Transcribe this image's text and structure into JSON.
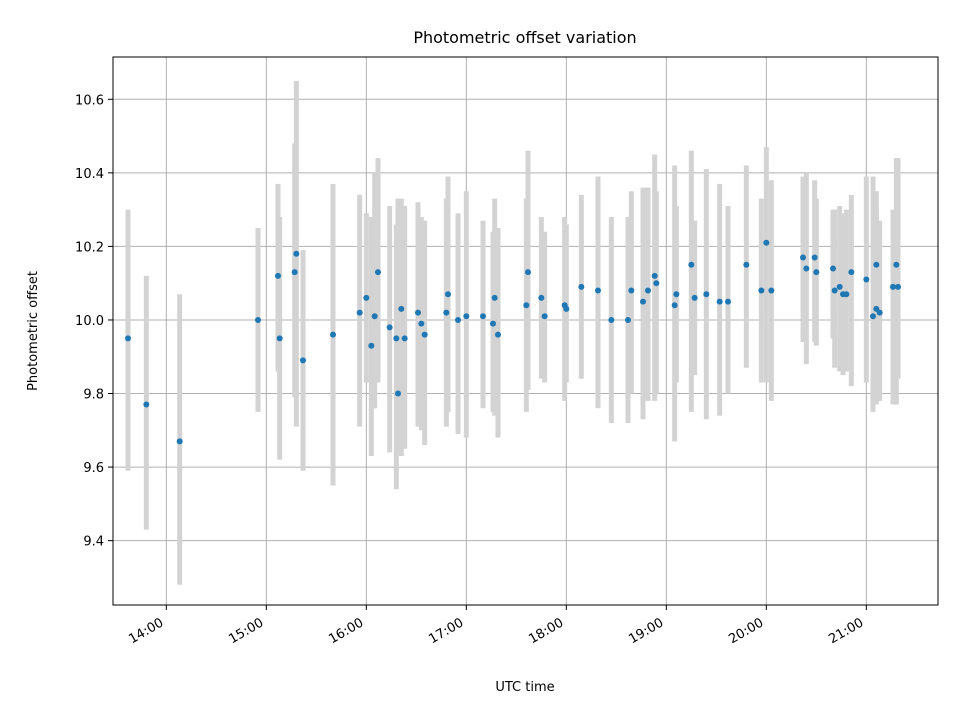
{
  "chart_data": {
    "type": "scatter",
    "title": "Photometric offset variation",
    "xlabel": "UTC time",
    "ylabel": "Photometric offset",
    "grid": true,
    "xlim": [
      "13:28",
      "21:43"
    ],
    "ylim": [
      9.225,
      10.715
    ],
    "x_ticks": [
      "14:00",
      "15:00",
      "16:00",
      "17:00",
      "18:00",
      "19:00",
      "20:00",
      "21:00"
    ],
    "y_ticks": [
      "9.4",
      "9.6",
      "9.8",
      "10.0",
      "10.2",
      "10.4",
      "10.6"
    ],
    "colors": {
      "point": "#1f77b4",
      "errorbar": "#d3d3d3",
      "grid": "#b0b0b0"
    },
    "series": [
      {
        "x": [
          "13:37",
          "13:48",
          "14:08",
          "14:55",
          "15:07",
          "15:08",
          "15:17",
          "15:18",
          "15:22",
          "15:40",
          "15:56",
          "16:00",
          "16:03",
          "16:05",
          "16:07",
          "16:14",
          "16:18",
          "16:19",
          "16:21",
          "16:23",
          "16:31",
          "16:33",
          "16:35",
          "16:48",
          "16:49",
          "16:55",
          "17:00",
          "17:10",
          "17:16",
          "17:17",
          "17:19",
          "17:36",
          "17:37",
          "17:45",
          "17:47",
          "17:59",
          "18:00",
          "18:09",
          "18:19",
          "18:27",
          "18:37",
          "18:39",
          "18:46",
          "18:49",
          "18:53",
          "18:54",
          "19:05",
          "19:06",
          "19:15",
          "19:17",
          "19:24",
          "19:32",
          "19:37",
          "19:48",
          "19:57",
          "20:00",
          "20:03",
          "20:22",
          "20:24",
          "20:29",
          "20:30",
          "20:40",
          "20:41",
          "20:44",
          "20:46",
          "20:48",
          "20:51",
          "21:00",
          "21:04",
          "21:06",
          "21:06",
          "21:08",
          "21:16",
          "21:18",
          "21:19"
        ],
        "y": [
          9.95,
          9.77,
          9.67,
          10.0,
          10.12,
          9.95,
          10.13,
          10.18,
          9.89,
          9.96,
          10.02,
          10.06,
          9.93,
          10.01,
          10.13,
          9.98,
          9.95,
          9.8,
          10.03,
          9.95,
          10.02,
          9.99,
          9.96,
          10.02,
          10.07,
          10.0,
          10.01,
          10.01,
          9.99,
          10.06,
          9.96,
          10.04,
          10.13,
          10.06,
          10.01,
          10.04,
          10.03,
          10.09,
          10.08,
          10.0,
          10.0,
          10.08,
          10.05,
          10.08,
          10.12,
          10.1,
          10.04,
          10.07,
          10.15,
          10.06,
          10.07,
          10.05,
          10.05,
          10.15,
          10.08,
          10.21,
          10.08,
          10.17,
          10.14,
          10.17,
          10.13,
          10.14,
          10.08,
          10.09,
          10.07,
          10.07,
          10.13,
          10.11,
          10.01,
          10.03,
          10.15,
          10.02,
          10.09,
          10.15,
          10.09
        ],
        "yerr_low": [
          9.59,
          9.43,
          9.28,
          9.75,
          9.86,
          9.62,
          9.79,
          9.71,
          9.59,
          9.55,
          9.71,
          9.83,
          9.63,
          9.76,
          9.83,
          9.64,
          9.54,
          9.64,
          9.63,
          9.65,
          9.71,
          9.7,
          9.66,
          9.71,
          9.75,
          9.69,
          9.68,
          9.76,
          9.75,
          9.74,
          9.68,
          9.75,
          9.81,
          9.84,
          9.83,
          9.78,
          9.83,
          9.84,
          9.76,
          9.72,
          9.72,
          9.8,
          9.73,
          9.78,
          9.78,
          9.8,
          9.67,
          9.83,
          9.75,
          9.85,
          9.73,
          9.74,
          9.8,
          9.87,
          9.83,
          9.83,
          9.78,
          9.94,
          9.88,
          9.94,
          9.93,
          9.95,
          9.87,
          9.86,
          9.85,
          9.86,
          9.82,
          9.83,
          9.75,
          9.77,
          9.79,
          9.78,
          9.77,
          9.77,
          9.84
        ],
        "yerr_high": [
          10.3,
          10.12,
          10.07,
          10.25,
          10.37,
          10.28,
          10.48,
          10.65,
          10.19,
          10.37,
          10.34,
          10.29,
          10.28,
          10.4,
          10.44,
          10.31,
          10.26,
          10.33,
          10.33,
          10.31,
          10.32,
          10.28,
          10.27,
          10.33,
          10.39,
          10.29,
          10.35,
          10.27,
          10.24,
          10.33,
          10.25,
          10.33,
          10.46,
          10.28,
          10.24,
          10.28,
          10.26,
          10.34,
          10.39,
          10.28,
          10.28,
          10.35,
          10.36,
          10.36,
          10.45,
          10.35,
          10.42,
          10.31,
          10.46,
          10.27,
          10.41,
          10.37,
          10.31,
          10.42,
          10.33,
          10.47,
          10.38,
          10.39,
          10.4,
          10.38,
          10.33,
          10.3,
          10.3,
          10.31,
          10.29,
          10.3,
          10.34,
          10.39,
          10.39,
          10.35,
          10.3,
          10.27,
          10.3,
          10.44,
          10.44
        ]
      }
    ]
  }
}
